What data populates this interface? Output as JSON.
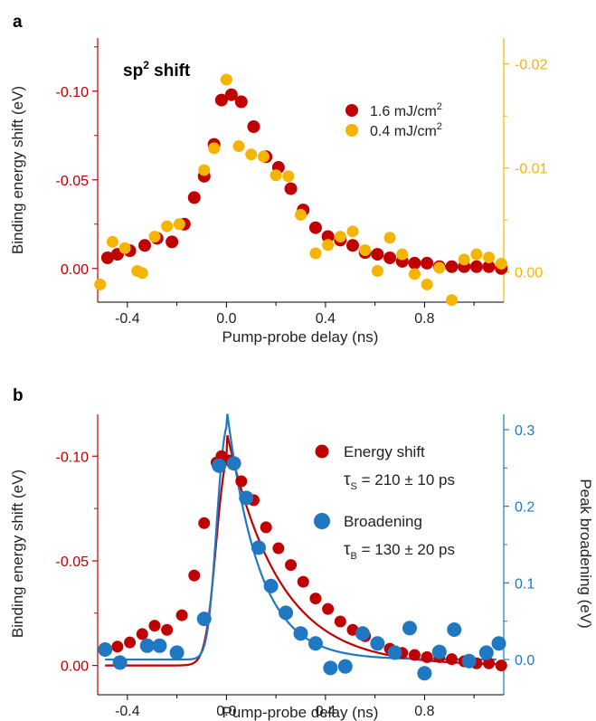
{
  "chart_data": [
    {
      "panel": "a",
      "type": "scatter",
      "annotation": {
        "main": "sp",
        "sup": "2",
        "tail": " shift"
      },
      "xlabel": "Pump-probe delay (ns)",
      "ylabel": "Binding energy shift (eV)",
      "y2label": "",
      "xlim": [
        -0.52,
        1.12
      ],
      "ylim": [
        0.019,
        -0.13
      ],
      "y2lim": [
        0.0029,
        -0.0225
      ],
      "xticks": [
        -0.4,
        0.0,
        0.4,
        0.8
      ],
      "xtick_labels": [
        "-0.4",
        "0.0",
        "0.4",
        "0.8"
      ],
      "yticks": [
        0.0,
        -0.05,
        -0.1
      ],
      "ytick_labels": [
        "0.00",
        "-0.05",
        "-0.10"
      ],
      "y2ticks": [
        0.0,
        -0.01,
        -0.02
      ],
      "y2tick_labels": [
        "0.00",
        "-0.01",
        "-0.02"
      ],
      "left_axis_color": "#c00000",
      "right_axis_color": "#f5b400",
      "legend_position": "right",
      "series": [
        {
          "name": "1.6 mJ/cm",
          "name_sup": "2",
          "color": "#c00000",
          "axis": "left",
          "x": [
            -0.48,
            -0.44,
            -0.39,
            -0.33,
            -0.28,
            -0.22,
            -0.17,
            -0.13,
            -0.09,
            -0.05,
            -0.02,
            0.02,
            0.06,
            0.11,
            0.16,
            0.21,
            0.26,
            0.31,
            0.36,
            0.41,
            0.46,
            0.51,
            0.56,
            0.61,
            0.66,
            0.71,
            0.76,
            0.81,
            0.86,
            0.91,
            0.96,
            1.01,
            1.06,
            1.11
          ],
          "y": [
            -0.006,
            -0.008,
            -0.01,
            -0.013,
            -0.017,
            -0.015,
            -0.025,
            -0.04,
            -0.052,
            -0.07,
            -0.095,
            -0.098,
            -0.094,
            -0.08,
            -0.063,
            -0.057,
            -0.045,
            -0.033,
            -0.023,
            -0.018,
            -0.016,
            -0.013,
            -0.009,
            -0.008,
            -0.006,
            -0.004,
            -0.003,
            -0.003,
            -0.001,
            -0.001,
            -0.001,
            -0.001,
            -0.001,
            0.0
          ]
        },
        {
          "name": "0.4 mJ/cm",
          "name_sup": "2",
          "color": "#f5b400",
          "axis": "right",
          "x": [
            -0.51,
            -0.46,
            -0.41,
            -0.36,
            -0.34,
            -0.29,
            -0.24,
            -0.19,
            -0.09,
            -0.05,
            0.0,
            0.05,
            0.1,
            0.15,
            0.2,
            0.25,
            0.3,
            0.36,
            0.41,
            0.46,
            0.51,
            0.56,
            0.61,
            0.66,
            0.71,
            0.76,
            0.81,
            0.86,
            0.91,
            0.96,
            1.01,
            1.06,
            1.11
          ],
          "y": [
            0.0012,
            -0.0029,
            -0.0023,
            -0.0001,
            0.0001,
            -0.0034,
            -0.0044,
            -0.0046,
            -0.0098,
            -0.0119,
            -0.0185,
            -0.0121,
            -0.0113,
            -0.0111,
            -0.0093,
            -0.0092,
            -0.0055,
            -0.0018,
            -0.0026,
            -0.0034,
            -0.0039,
            -0.0021,
            -0.0001,
            -0.0033,
            -0.0017,
            0.0002,
            0.0012,
            -0.0004,
            0.0027,
            -0.0012,
            -0.0017,
            -0.0014,
            -0.0008
          ]
        }
      ]
    },
    {
      "panel": "b",
      "type": "scatter",
      "xlabel": "Pump-probe delay (ns)",
      "ylabel": "Binding energy shift (eV)",
      "y2label": "Peak broadening (eV)",
      "xlim": [
        -0.52,
        1.12
      ],
      "ylim": [
        0.014,
        -0.12
      ],
      "y2lim": [
        -0.046,
        0.32
      ],
      "xticks": [
        -0.4,
        0.0,
        0.4,
        0.8
      ],
      "xtick_labels": [
        "-0.4",
        "0.0",
        "0.4",
        "0.8"
      ],
      "yticks": [
        0.0,
        -0.05,
        -0.1
      ],
      "ytick_labels": [
        "0.00",
        "-0.05",
        "-0.10"
      ],
      "y2ticks": [
        0.0,
        0.1,
        0.2,
        0.3
      ],
      "y2tick_labels": [
        "0.0",
        "0.1",
        "0.2",
        "0.3"
      ],
      "left_axis_color": "#c00000",
      "right_axis_color": "#1f78c1",
      "legend_position": "right",
      "series": [
        {
          "name": "Energy shift",
          "color": "#c00000",
          "axis": "left",
          "tau_symbol": "τ",
          "tau_sub": "S",
          "tau_value": " = 210 ± 10 ps",
          "x": [
            -0.49,
            -0.44,
            -0.39,
            -0.34,
            -0.29,
            -0.24,
            -0.18,
            -0.13,
            -0.09,
            -0.04,
            -0.02,
            0.01,
            0.06,
            0.11,
            0.16,
            0.21,
            0.26,
            0.31,
            0.36,
            0.41,
            0.46,
            0.51,
            0.56,
            0.61,
            0.66,
            0.71,
            0.76,
            0.81,
            0.86,
            0.91,
            0.96,
            1.01,
            1.06,
            1.11
          ],
          "y": [
            -0.008,
            -0.009,
            -0.011,
            -0.015,
            -0.019,
            -0.017,
            -0.024,
            -0.043,
            -0.068,
            -0.097,
            -0.1,
            -0.098,
            -0.088,
            -0.079,
            -0.066,
            -0.056,
            -0.048,
            -0.04,
            -0.032,
            -0.027,
            -0.021,
            -0.017,
            -0.014,
            -0.01,
            -0.008,
            -0.006,
            -0.005,
            -0.004,
            -0.004,
            -0.003,
            -0.002,
            -0.001,
            -0.001,
            0.0
          ]
        },
        {
          "name": "Broadening",
          "color": "#1f78c1",
          "axis": "right",
          "tau_symbol": "τ",
          "tau_sub": "B",
          "tau_value": " = 130 ± 20 ps",
          "x": [
            -0.49,
            -0.43,
            -0.32,
            -0.27,
            -0.2,
            -0.09,
            -0.03,
            0.03,
            0.08,
            0.13,
            0.18,
            0.24,
            0.3,
            0.36,
            0.42,
            0.48,
            0.55,
            0.61,
            0.68,
            0.74,
            0.8,
            0.86,
            0.92,
            0.98,
            1.05,
            1.1
          ],
          "y": [
            0.013,
            -0.004,
            0.018,
            0.018,
            0.009,
            0.053,
            0.253,
            0.256,
            0.211,
            0.146,
            0.096,
            0.061,
            0.034,
            0.021,
            -0.011,
            -0.009,
            0.034,
            0.021,
            0.009,
            0.041,
            -0.018,
            0.01,
            0.039,
            -0.002,
            0.009,
            0.021
          ]
        }
      ],
      "fit_lines": [
        {
          "name": "Energy shift fit",
          "color": "#c00000",
          "axis": "left",
          "t0": 0.0,
          "sigma": 0.055,
          "tau": 0.21,
          "amp": -0.112
        },
        {
          "name": "Broadening fit",
          "color": "#1f78c1",
          "axis": "right",
          "t0": 0.0,
          "sigma": 0.045,
          "tau": 0.13,
          "amp": 0.33
        }
      ]
    }
  ]
}
